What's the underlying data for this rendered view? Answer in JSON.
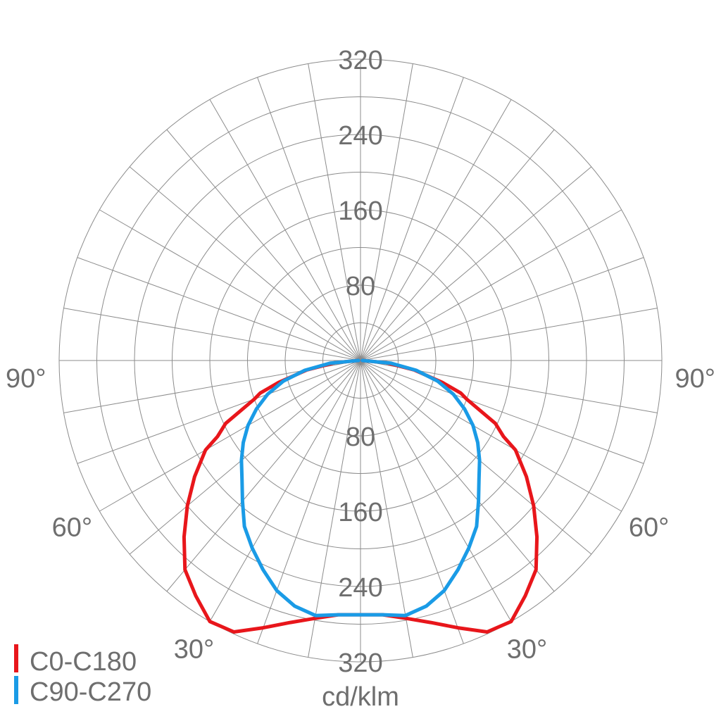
{
  "chart_data": {
    "type": "polar",
    "unit_label": "cd/klm",
    "radial_max": 320,
    "radial_ticks": [
      80,
      160,
      240,
      320
    ],
    "radial_tick_labels": [
      "80",
      "160",
      "240",
      "320"
    ],
    "angle_labels": [
      "30°",
      "60°",
      "90°",
      "30°",
      "60°",
      "90°"
    ],
    "angle_label_values": [
      -30,
      -60,
      -90,
      30,
      60,
      90
    ],
    "grid": true,
    "legend_position": "bottom-left",
    "series": [
      {
        "name": "C0-C180",
        "color": "#e8161b",
        "angles": [
          0,
          5,
          10,
          15,
          20,
          25,
          30,
          35,
          40,
          45,
          50,
          55,
          60,
          62,
          65,
          70,
          72,
          75,
          80,
          85,
          90
        ],
        "values": [
          270,
          271,
          278,
          288,
          302,
          318,
          320,
          305,
          290,
          265,
          240,
          215,
          190,
          172,
          158,
          120,
          112,
          90,
          58,
          28,
          2
        ]
      },
      {
        "name": "C90-C270",
        "color": "#1a9be6",
        "angles": [
          0,
          5,
          10,
          15,
          20,
          25,
          30,
          35,
          40,
          45,
          50,
          55,
          60,
          65,
          70,
          75,
          80,
          85,
          90
        ],
        "values": [
          270,
          271,
          275,
          270,
          260,
          245,
          230,
          215,
          195,
          178,
          165,
          152,
          138,
          122,
          105,
          85,
          60,
          32,
          2
        ]
      }
    ]
  }
}
